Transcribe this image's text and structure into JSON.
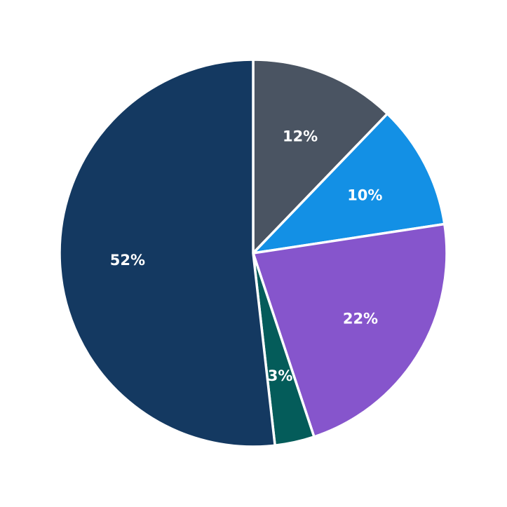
{
  "chart_data": {
    "type": "pie",
    "title": "",
    "start_angle_deg_from_top": 0,
    "direction": "clockwise",
    "center": [
      361,
      361
    ],
    "radius": 276,
    "slices": [
      {
        "label": "12%",
        "value": 12.2,
        "color": "#4a5462"
      },
      {
        "label": "10%",
        "value": 10.4,
        "color": "#1390e5"
      },
      {
        "label": "22%",
        "value": 22.3,
        "color": "#8655cc"
      },
      {
        "label": "3%",
        "value": 3.3,
        "color": "#045c5a"
      },
      {
        "label": "52%",
        "value": 51.8,
        "color": "#143961"
      }
    ],
    "legend": null
  }
}
